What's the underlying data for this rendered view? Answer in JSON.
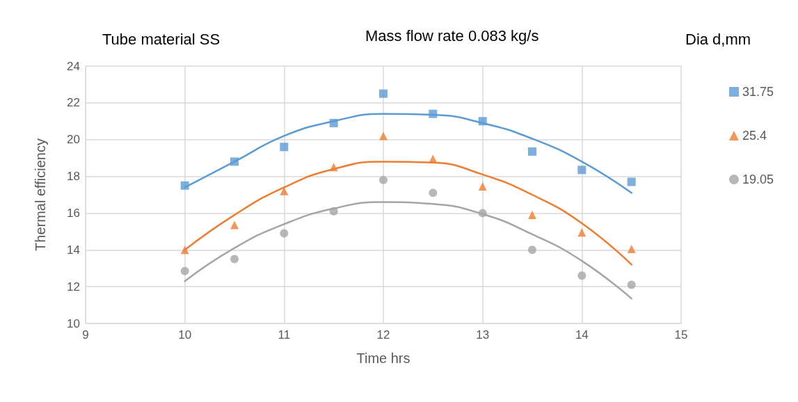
{
  "chart_data": {
    "type": "scatter",
    "title": "Tube material SS",
    "annotations": [
      "Mass flow rate 0.083 kg/s"
    ],
    "legend_title": "Dia d,mm",
    "xlabel": "Time hrs",
    "ylabel": "Thermal efficiency",
    "x": [
      10,
      10.5,
      11,
      11.5,
      12,
      12.5,
      13,
      13.5,
      14,
      14.5
    ],
    "series": [
      {
        "name": "31.75",
        "color": "#5b9bd5",
        "marker": "square",
        "values": [
          17.5,
          18.8,
          19.6,
          20.9,
          22.5,
          21.4,
          21.0,
          19.35,
          18.35,
          17.7
        ]
      },
      {
        "name": "25.4",
        "color": "#ed7d31",
        "marker": "triangle",
        "values": [
          14.0,
          15.35,
          17.2,
          18.5,
          20.2,
          18.95,
          17.45,
          15.9,
          14.95,
          14.05
        ]
      },
      {
        "name": "19.05",
        "color": "#a5a5a5",
        "marker": "circle",
        "values": [
          12.85,
          13.5,
          14.9,
          16.1,
          17.8,
          17.1,
          16.0,
          14.0,
          12.6,
          12.1
        ]
      },
      {
        "type": "line",
        "color": "#5b9bd5",
        "marker": "none",
        "values": [
          17.4,
          18.8,
          20.2,
          21.0,
          21.4,
          21.35,
          20.9,
          20.05,
          18.8,
          17.1
        ]
      },
      {
        "type": "line",
        "color": "#ed7d31",
        "marker": "none",
        "values": [
          14.0,
          15.9,
          17.4,
          18.4,
          18.8,
          18.75,
          18.1,
          17.0,
          15.45,
          13.2
        ]
      },
      {
        "type": "line",
        "color": "#a5a5a5",
        "marker": "none",
        "values": [
          12.3,
          14.1,
          15.4,
          16.25,
          16.6,
          16.5,
          15.95,
          14.85,
          13.4,
          11.35
        ]
      }
    ],
    "xlim": [
      9,
      15
    ],
    "xticks": [
      9,
      10,
      11,
      12,
      13,
      14,
      15
    ],
    "ylim": [
      10,
      24
    ],
    "yticks": [
      10,
      12,
      14,
      16,
      18,
      20,
      22,
      24
    ],
    "grid": true,
    "legend": "right"
  }
}
